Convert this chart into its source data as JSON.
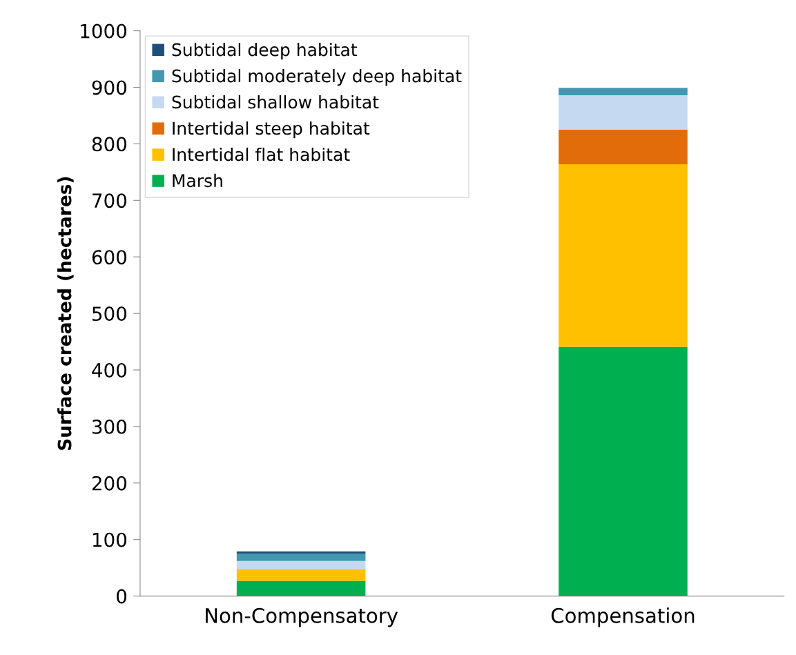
{
  "chart_data": {
    "type": "bar",
    "stacked": true,
    "ylabel": "Surface created (hectares)",
    "categories": [
      "Non-Compensatory",
      "Compensation"
    ],
    "series": [
      {
        "name": "Marsh",
        "color": "#00b050",
        "values": [
          27,
          441
        ]
      },
      {
        "name": "Intertidal flat habitat",
        "color": "#ffc000",
        "values": [
          20,
          323
        ]
      },
      {
        "name": "Intertidal steep habitat",
        "color": "#e36c0a",
        "values": [
          0,
          61
        ]
      },
      {
        "name": "Subtidal shallow habitat",
        "color": "#c5d9f1",
        "values": [
          15,
          61
        ]
      },
      {
        "name": "Subtidal moderately deep habitat",
        "color": "#4397b0",
        "values": [
          13,
          13
        ]
      },
      {
        "name": "Subtidal deep habitat",
        "color": "#1f4e79",
        "values": [
          4,
          0
        ]
      }
    ],
    "ylim": [
      0,
      1000
    ],
    "yticks": [
      0,
      100,
      200,
      300,
      400,
      500,
      600,
      700,
      800,
      900,
      1000
    ],
    "grid": false,
    "legend": "top left"
  }
}
